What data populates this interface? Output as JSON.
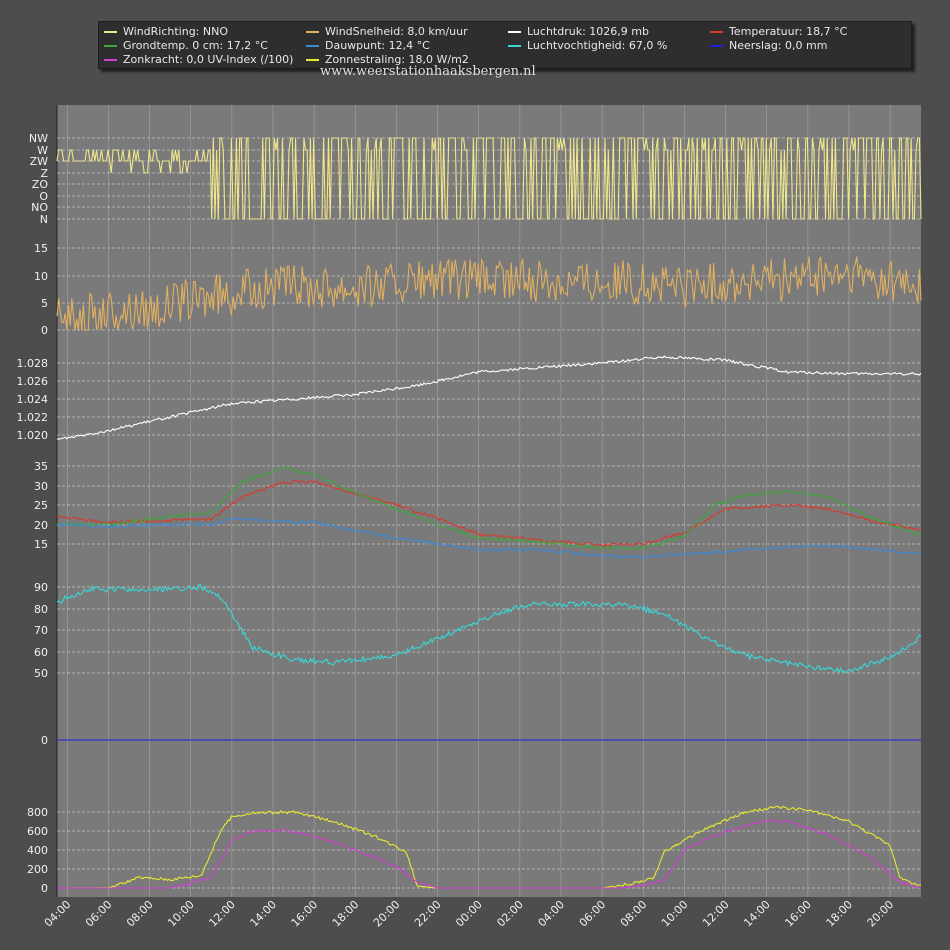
{
  "watermark": "www.weerstationhaaksbergen.nl",
  "legend": [
    {
      "label": "WindRichting: NNO",
      "color": "#f0e68c"
    },
    {
      "label": "WindSnelheid: 8,0 km/uur",
      "color": "#e0b060"
    },
    {
      "label": "Luchtdruk: 1026,9 mb",
      "color": "#ffffff"
    },
    {
      "label": "Temperatuur: 18,7 °C",
      "color": "#d83a2a"
    },
    {
      "label": "Grondtemp. 0 cm: 17,2 °C",
      "color": "#3aa83a"
    },
    {
      "label": "Dauwpunt: 12,4 °C",
      "color": "#3a8ad8"
    },
    {
      "label": "Luchtvochtigheid: 67,0 %",
      "color": "#38d8d8"
    },
    {
      "label": "Neerslag: 0,0 mm",
      "color": "#2020e0"
    },
    {
      "label": "Zonkracht: 0,0 UV-Index (/100)",
      "color": "#d040d0"
    },
    {
      "label": "Zonnestraling: 18,0 W/m2",
      "color": "#e8e830"
    }
  ],
  "chart_data": {
    "type": "line",
    "x_ticks": [
      "04:00",
      "06:00",
      "08:00",
      "10:00",
      "12:00",
      "14:00",
      "16:00",
      "18:00",
      "20:00",
      "22:00",
      "00:00",
      "02:00",
      "04:00",
      "06:00",
      "08:00",
      "10:00",
      "12:00",
      "14:00",
      "16:00",
      "18:00",
      "20:00"
    ],
    "x_range_hours": [
      3.5,
      45.5
    ],
    "panels": [
      {
        "id": "winddir",
        "ticks": [
          "NW",
          "W",
          "ZW",
          "Z",
          "ZO",
          "O",
          "NO",
          "N"
        ],
        "series": [
          {
            "name": "WindRichting",
            "color": "#f0e68c",
            "points": [
              [
                3.5,
                "ZW"
              ],
              [
                10,
                "ZW"
              ],
              [
                11,
                "W"
              ],
              [
                12,
                "N"
              ],
              [
                20,
                "NW"
              ],
              [
                30,
                "N"
              ],
              [
                40,
                "NW"
              ],
              [
                45.5,
                "N"
              ]
            ]
          }
        ]
      },
      {
        "id": "windspeed",
        "ticks": [
          0,
          5,
          10,
          15
        ],
        "ylim": [
          0,
          16
        ],
        "series": [
          {
            "name": "WindSnelheid",
            "color": "#e0b060",
            "points": [
              [
                3.5,
                2
              ],
              [
                8,
                4
              ],
              [
                11,
                6
              ],
              [
                14,
                8
              ],
              [
                18,
                8
              ],
              [
                22,
                9
              ],
              [
                26,
                9
              ],
              [
                30,
                9
              ],
              [
                34,
                8
              ],
              [
                38,
                9
              ],
              [
                42,
                10
              ],
              [
                45.5,
                8
              ]
            ]
          }
        ]
      },
      {
        "id": "pressure",
        "ticks": [
          1.02,
          1.022,
          1.024,
          1.026,
          1.028
        ],
        "ylim": [
          1.018,
          1.03
        ],
        "series": [
          {
            "name": "Luchtdruk",
            "color": "#ffffff",
            "points": [
              [
                3.5,
                1.0195
              ],
              [
                6,
                1.0205
              ],
              [
                9,
                1.022
              ],
              [
                12,
                1.0235
              ],
              [
                15,
                1.024
              ],
              [
                18,
                1.0245
              ],
              [
                21,
                1.0255
              ],
              [
                24,
                1.027
              ],
              [
                27,
                1.0275
              ],
              [
                30,
                1.028
              ],
              [
                33,
                1.0287
              ],
              [
                36,
                1.0283
              ],
              [
                39,
                1.027
              ],
              [
                42,
                1.0268
              ],
              [
                45.5,
                1.0268
              ]
            ]
          }
        ]
      },
      {
        "id": "temperature",
        "ticks": [
          15,
          20,
          25,
          30,
          35
        ],
        "ylim": [
          12,
          37
        ],
        "series": [
          {
            "name": "Temperatuur",
            "color": "#d83a2a",
            "points": [
              [
                3.5,
                22
              ],
              [
                6,
                20.5
              ],
              [
                9,
                21
              ],
              [
                11,
                21.5
              ],
              [
                12.5,
                27
              ],
              [
                14.5,
                30.8
              ],
              [
                16,
                31
              ],
              [
                18,
                28
              ],
              [
                20,
                25
              ],
              [
                22,
                21.5
              ],
              [
                24,
                17.5
              ],
              [
                27,
                16
              ],
              [
                30,
                14.7
              ],
              [
                32,
                15
              ],
              [
                34,
                18
              ],
              [
                36,
                24
              ],
              [
                39,
                25
              ],
              [
                41,
                24
              ],
              [
                43,
                21
              ],
              [
                45.5,
                18.7
              ]
            ]
          },
          {
            "name": "Grondtemp. 0 cm",
            "color": "#3aa83a",
            "points": [
              [
                3.5,
                20
              ],
              [
                6,
                20
              ],
              [
                9,
                22
              ],
              [
                11,
                23
              ],
              [
                12.5,
                31
              ],
              [
                14.5,
                34.5
              ],
              [
                16,
                33
              ],
              [
                18,
                28
              ],
              [
                20,
                24
              ],
              [
                22,
                20
              ],
              [
                24,
                16.5
              ],
              [
                27,
                15.5
              ],
              [
                30,
                14
              ],
              [
                32,
                14
              ],
              [
                34,
                17
              ],
              [
                35.5,
                25
              ],
              [
                37,
                27.5
              ],
              [
                39,
                28.5
              ],
              [
                41,
                27
              ],
              [
                43,
                22
              ],
              [
                45.5,
                17.2
              ]
            ]
          },
          {
            "name": "Dauwpunt",
            "color": "#3a8ad8",
            "points": [
              [
                3.5,
                20
              ],
              [
                6,
                19.5
              ],
              [
                9,
                20
              ],
              [
                11,
                20
              ],
              [
                12,
                21.5
              ],
              [
                14,
                21
              ],
              [
                16,
                20.5
              ],
              [
                18,
                18.5
              ],
              [
                20,
                16.5
              ],
              [
                22,
                15
              ],
              [
                24,
                13.5
              ],
              [
                27,
                13.5
              ],
              [
                30,
                12
              ],
              [
                32,
                11.5
              ],
              [
                34,
                12.5
              ],
              [
                36,
                13
              ],
              [
                38,
                14
              ],
              [
                40,
                14.5
              ],
              [
                42,
                14.3
              ],
              [
                45.5,
                12.4
              ]
            ]
          }
        ]
      },
      {
        "id": "humidity",
        "ticks": [
          50,
          60,
          70,
          80,
          90
        ],
        "ylim": [
          45,
          95
        ],
        "series": [
          {
            "name": "Luchtvochtigheid",
            "color": "#38d8d8",
            "points": [
              [
                3.5,
                83
              ],
              [
                5,
                89
              ],
              [
                8,
                88.5
              ],
              [
                10.5,
                90
              ],
              [
                11.5,
                85
              ],
              [
                13,
                62
              ],
              [
                15,
                56
              ],
              [
                17,
                55
              ],
              [
                20,
                58
              ],
              [
                23,
                70
              ],
              [
                25,
                78
              ],
              [
                26.5,
                82
              ],
              [
                29,
                82
              ],
              [
                31,
                81.5
              ],
              [
                33,
                78
              ],
              [
                35,
                66
              ],
              [
                37,
                58
              ],
              [
                40,
                53
              ],
              [
                42,
                51
              ],
              [
                44,
                57
              ],
              [
                45.5,
                67
              ]
            ]
          }
        ]
      },
      {
        "id": "rain",
        "ticks": [
          0
        ],
        "ylim": [
          -1,
          5
        ],
        "series": [
          {
            "name": "Neerslag",
            "color": "#2020e0",
            "points": [
              [
                3.5,
                0
              ],
              [
                45.5,
                0
              ]
            ]
          }
        ]
      },
      {
        "id": "solar",
        "ticks": [
          0,
          200,
          400,
          600,
          800
        ],
        "ylim": [
          -20,
          880
        ],
        "series": [
          {
            "name": "Zonnestraling",
            "color": "#e8e830",
            "points": [
              [
                3.5,
                0
              ],
              [
                6,
                2
              ],
              [
                7.5,
                110
              ],
              [
                9,
                90
              ],
              [
                10.5,
                130
              ],
              [
                11.5,
                620
              ],
              [
                12,
                750
              ],
              [
                13,
                790
              ],
              [
                15,
                800
              ],
              [
                17,
                700
              ],
              [
                19,
                540
              ],
              [
                20.5,
                380
              ],
              [
                21,
                20
              ],
              [
                22,
                0
              ],
              [
                30,
                0
              ],
              [
                31.5,
                50
              ],
              [
                32.5,
                100
              ],
              [
                33,
                380
              ],
              [
                35,
                620
              ],
              [
                37,
                800
              ],
              [
                38.5,
                850
              ],
              [
                40,
                820
              ],
              [
                42,
                700
              ],
              [
                44,
                450
              ],
              [
                44.5,
                100
              ],
              [
                45.5,
                20
              ]
            ]
          },
          {
            "name": "Zonkracht",
            "color": "#d040d0",
            "points": [
              [
                3.5,
                0
              ],
              [
                9,
                0
              ],
              [
                10,
                50
              ],
              [
                11,
                120
              ],
              [
                12,
                500
              ],
              [
                13,
                600
              ],
              [
                14.5,
                610
              ],
              [
                16,
                550
              ],
              [
                18,
                400
              ],
              [
                20,
                230
              ],
              [
                21,
                60
              ],
              [
                22,
                0
              ],
              [
                31,
                0
              ],
              [
                32,
                30
              ],
              [
                33,
                70
              ],
              [
                34,
                400
              ],
              [
                36,
                600
              ],
              [
                38,
                710
              ],
              [
                39,
                700
              ],
              [
                41,
                560
              ],
              [
                43,
                330
              ],
              [
                44.5,
                60
              ],
              [
                45.5,
                0
              ]
            ]
          }
        ]
      }
    ]
  }
}
